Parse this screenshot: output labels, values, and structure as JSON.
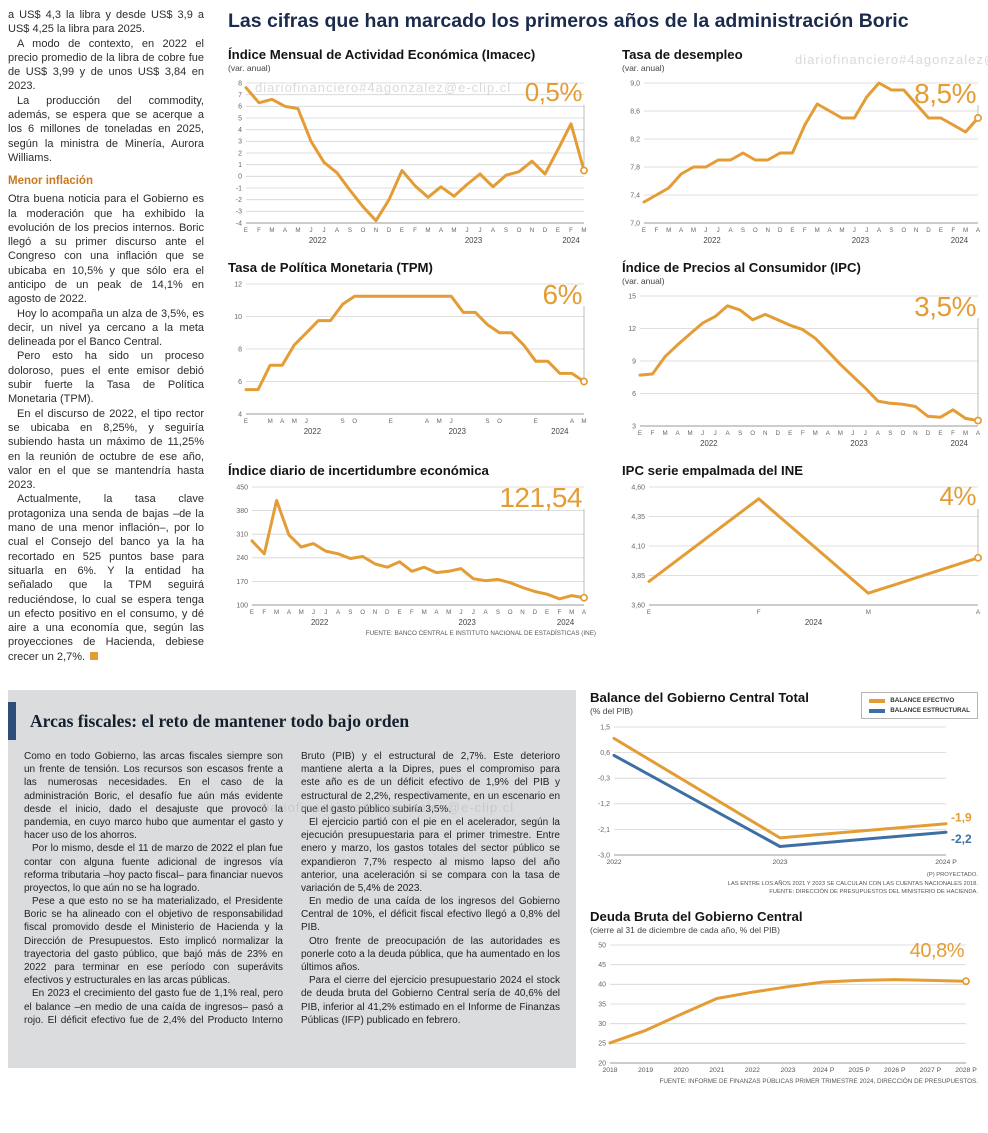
{
  "watermark": "diariofinanciero#4agonzalez@e-clip.cl",
  "headline": "Las cifras que han marcado los primeros años de la administración Boric",
  "colors": {
    "accent_orange": "#E49C35",
    "accent_blue": "#3D6FA5",
    "headline_navy": "#1B2B4D"
  },
  "article": {
    "lead_paragraphs": [
      "a US$ 4,3 la libra y desde US$ 3,9 a US$ 4,25 la libra para 2025.",
      "A modo de contexto, en 2022 el precio promedio de la libra de cobre fue de US$ 3,99 y de unos US$ 3,84 en 2023.",
      "La producción del commodity, además, se espera que se acerque a los 6 millones de toneladas en 2025, según la ministra de Minería, Aurora Williams."
    ],
    "subhead": "Menor inflación",
    "body_paragraphs": [
      "Otra buena noticia para el Gobierno es la moderación que ha exhibido la evolución de los precios internos. Boric llegó a su primer discurso ante el Congreso con una inflación que se ubicaba en 10,5% y que sólo era el anticipo de un peak de 14,1% en agosto de 2022.",
      "Hoy lo acompaña un alza de 3,5%, es decir, un nivel ya cercano a la meta delineada por el Banco Central.",
      "Pero esto ha sido un proceso doloroso, pues el ente emisor debió subir fuerte la Tasa de Política Monetaria (TPM).",
      "En el discurso de 2022, el tipo rector se ubicaba en 8,25%, y seguiría subiendo hasta un máximo de 11,25% en la reunión de octubre de ese año, valor en el que se mantendría hasta 2023.",
      "Actualmente, la tasa clave protagoniza una senda de bajas –de la mano de una menor inflación–, por lo cual el Consejo del banco ya la ha recortado en 525 puntos base para situarla en 6%. Y la entidad ha señalado que la TPM seguirá reduciéndose, lo cual se espera tenga un efecto positivo en el consumo, y dé aire a una economía que, según las proyecciones de Hacienda, debiese crecer un 2,7%."
    ]
  },
  "box": {
    "title": "Arcas fiscales: el reto de mantener todo bajo orden",
    "paragraphs": [
      "Como en todo Gobierno, las arcas fiscales siempre son un frente de tensión. Los recursos son escasos frente a las numerosas necesidades. En el caso de la administración Boric, el desafío fue aún más evidente desde el inicio, dado el desajuste que provocó la pandemia, en cuyo marco hubo que aumentar el gasto y hacer uso de los ahorros.",
      "Por lo mismo, desde el 11 de marzo de 2022 el plan fue contar con alguna fuente adicional de ingresos vía reforma tributaria –hoy pacto fiscal– para financiar nuevos proyectos, lo que aún no se ha logrado.",
      "Pese a que esto no se ha materializado, el Presidente Boric se ha alineado con el objetivo de responsabilidad fiscal promovido desde el Ministerio de Hacienda y la Dirección de Presupuestos. Esto implicó normalizar la trayectoria del gasto público, que bajó más de 23% en 2022 para terminar en ese período con superávits efectivos y estructurales en las arcas públicas.",
      "En 2023 el crecimiento del gasto fue de 1,1% real, pero el balance –en medio de una caída de ingresos– pasó a rojo. El déficit efectivo fue de 2,4% del Producto Interno Bruto (PIB) y el estructural de 2,7%. Este deterioro mantiene alerta a la Dipres, pues el compromiso para este año es de un déficit efectivo de 1,9% del PIB y estructural de 2,2%, respectivamente, en un escenario en que el gasto público subiría 3,5%.",
      "El ejercicio partió con el pie en el acelerador, según la ejecución presupuestaria para el primer trimestre. Entre enero y marzo, los gastos totales del sector público se expandieron 7,7% respecto al mismo lapso del año anterior, una aceleración si se compara con la tasa de variación de 5,4% de 2023.",
      "En medio de una caída de los ingresos del Gobierno Central de 10%, el déficit fiscal efectivo llegó a 0,8% del PIB.",
      "Otro frente de preocupación de las autoridades es ponerle coto a la deuda pública, que ha aumentado en los últimos años.",
      "Para el cierre del ejercicio presupuestario 2024 el stock de deuda bruta del Gobierno Central sería de 40,6% del PIB, inferior al 41,2% estimado en el Informe de Finanzas Públicas (IFP) publicado en febrero."
    ]
  },
  "chart_data": [
    {
      "type": "line",
      "title": "Índice Mensual de Actividad Económica (Imacec)",
      "subtitle": "(var. anual)",
      "source": "",
      "ylim": [
        -4,
        8
      ],
      "ml": 18,
      "yticks": [
        8,
        7,
        6,
        5,
        4,
        3,
        2,
        1,
        0,
        -1,
        -2,
        -3,
        -4
      ],
      "ytick_labels": [
        "8",
        "7",
        "6",
        "5",
        "4",
        "3",
        "2",
        "1",
        "0",
        "-1",
        "-2",
        "-3",
        "-4"
      ],
      "xticks": [
        "E",
        "F",
        "M",
        "A",
        "M",
        "J",
        "J",
        "A",
        "S",
        "O",
        "N",
        "D",
        "E",
        "F",
        "M",
        "A",
        "M",
        "J",
        "J",
        "A",
        "S",
        "O",
        "N",
        "D",
        "E",
        "F",
        "M"
      ],
      "years": [
        {
          "label": "2022",
          "start": 0,
          "end": 11
        },
        {
          "label": "2023",
          "start": 12,
          "end": 23
        },
        {
          "label": "2024",
          "start": 24,
          "end": 26
        }
      ],
      "annotation": {
        "text": "0,5%",
        "size": 26
      },
      "series": [
        {
          "color": "#E49C35",
          "width": 3,
          "drop_line": true,
          "end_marker": true,
          "values": [
            7.6,
            6.3,
            6.6,
            6.0,
            5.8,
            3.0,
            1.2,
            0.3,
            -1.2,
            -2.6,
            -3.8,
            -2.0,
            0.5,
            -0.8,
            -1.8,
            -0.9,
            -1.7,
            -0.7,
            0.2,
            -0.9,
            0.1,
            0.4,
            1.3,
            0.2,
            2.3,
            4.5,
            0.5
          ]
        }
      ]
    },
    {
      "type": "line",
      "title": "Tasa de desempleo",
      "subtitle": "(var. anual)",
      "source": "",
      "ylim": [
        7.0,
        9.0
      ],
      "ml": 22,
      "yticks": [
        9.0,
        8.6,
        8.2,
        7.8,
        7.4,
        7.0
      ],
      "ytick_labels": [
        "9,0",
        "8,6",
        "8,2",
        "7,8",
        "7,4",
        "7,0"
      ],
      "xticks": [
        "E",
        "F",
        "M",
        "A",
        "M",
        "J",
        "J",
        "A",
        "S",
        "O",
        "N",
        "D",
        "E",
        "F",
        "M",
        "A",
        "M",
        "J",
        "J",
        "A",
        "S",
        "O",
        "N",
        "D",
        "E",
        "F",
        "M",
        "A"
      ],
      "years": [
        {
          "label": "2022",
          "start": 0,
          "end": 11
        },
        {
          "label": "2023",
          "start": 12,
          "end": 23
        },
        {
          "label": "2024",
          "start": 24,
          "end": 27
        }
      ],
      "annotation": {
        "text": "8,5%",
        "size": 28
      },
      "series": [
        {
          "color": "#E49C35",
          "width": 3,
          "drop_line": true,
          "end_marker": true,
          "values": [
            7.3,
            7.4,
            7.5,
            7.7,
            7.8,
            7.8,
            7.9,
            7.9,
            8.0,
            7.9,
            7.9,
            8.0,
            8.0,
            8.4,
            8.7,
            8.6,
            8.5,
            8.5,
            8.8,
            9.0,
            8.9,
            8.9,
            8.7,
            8.5,
            8.5,
            8.4,
            8.3,
            8.5
          ]
        }
      ]
    },
    {
      "type": "line",
      "title": "Tasa de Política Monetaria (TPM)",
      "subtitle": "",
      "source": "",
      "ylim": [
        4,
        12
      ],
      "ml": 18,
      "yticks": [
        12,
        10,
        8,
        6,
        4
      ],
      "ytick_labels": [
        "12",
        "10",
        "8",
        "6",
        "4"
      ],
      "xticks": [
        "E",
        "",
        "M",
        "A",
        "M",
        "J",
        "",
        "",
        "S",
        "O",
        "",
        "",
        "E",
        "",
        "",
        "A",
        "M",
        "J",
        "",
        "",
        "S",
        "O",
        "",
        "",
        "E",
        "",
        "",
        "A",
        "M"
      ],
      "years": [
        {
          "label": "2022",
          "start": 0,
          "end": 11
        },
        {
          "label": "2023",
          "start": 12,
          "end": 23
        },
        {
          "label": "2024",
          "start": 24,
          "end": 28
        }
      ],
      "annotation": {
        "text": "6%",
        "size": 28
      },
      "series": [
        {
          "color": "#E49C35",
          "width": 3,
          "drop_line": true,
          "end_marker": true,
          "values": [
            5.5,
            5.5,
            7.0,
            7.0,
            8.25,
            9.0,
            9.75,
            9.75,
            10.75,
            11.25,
            11.25,
            11.25,
            11.25,
            11.25,
            11.25,
            11.25,
            11.25,
            11.25,
            10.25,
            10.25,
            9.5,
            9.0,
            9.0,
            8.25,
            7.25,
            7.25,
            6.5,
            6.5,
            6.0
          ]
        }
      ]
    },
    {
      "type": "line",
      "title": "Índice de Precios al Consumidor (IPC)",
      "subtitle": "(var. anual)",
      "source": "",
      "ylim": [
        3,
        15
      ],
      "ml": 18,
      "yticks": [
        15,
        12,
        9,
        6,
        3
      ],
      "ytick_labels": [
        "15",
        "12",
        "9",
        "6",
        "3"
      ],
      "xticks": [
        "E",
        "F",
        "M",
        "A",
        "M",
        "J",
        "J",
        "A",
        "S",
        "O",
        "N",
        "D",
        "E",
        "F",
        "M",
        "A",
        "M",
        "J",
        "J",
        "A",
        "S",
        "O",
        "N",
        "D",
        "E",
        "F",
        "M",
        "A"
      ],
      "years": [
        {
          "label": "2022",
          "start": 0,
          "end": 11
        },
        {
          "label": "2023",
          "start": 12,
          "end": 23
        },
        {
          "label": "2024",
          "start": 24,
          "end": 27
        }
      ],
      "annotation": {
        "text": "3,5%",
        "size": 28
      },
      "series": [
        {
          "color": "#E49C35",
          "width": 3,
          "drop_line": true,
          "end_marker": true,
          "values": [
            7.7,
            7.8,
            9.4,
            10.5,
            11.5,
            12.5,
            13.1,
            14.1,
            13.7,
            12.8,
            13.3,
            12.8,
            12.3,
            11.9,
            11.1,
            9.9,
            8.7,
            7.6,
            6.5,
            5.3,
            5.1,
            5.0,
            4.8,
            3.9,
            3.8,
            4.5,
            3.7,
            3.5
          ]
        }
      ]
    },
    {
      "type": "line",
      "title": "Índice diario de incertidumbre económica",
      "subtitle": "",
      "source": "FUENTE: BANCO CENTRAL E INSTITUTO NACIONAL DE ESTADÍSTICAS (INE)",
      "ylim": [
        100,
        450
      ],
      "ml": 24,
      "yticks": [
        450,
        380,
        310,
        240,
        170,
        100
      ],
      "ytick_labels": [
        "450",
        "380",
        "310",
        "240",
        "170",
        "100"
      ],
      "xticks": [
        "E",
        "F",
        "M",
        "A",
        "M",
        "J",
        "J",
        "A",
        "S",
        "O",
        "N",
        "D",
        "E",
        "F",
        "M",
        "A",
        "M",
        "J",
        "J",
        "A",
        "S",
        "O",
        "N",
        "D",
        "E",
        "F",
        "M",
        "A"
      ],
      "years": [
        {
          "label": "2022",
          "start": 0,
          "end": 11
        },
        {
          "label": "2023",
          "start": 12,
          "end": 23
        },
        {
          "label": "2024",
          "start": 24,
          "end": 27
        }
      ],
      "annotation": {
        "text": "121,54",
        "size": 28
      },
      "series": [
        {
          "color": "#E49C35",
          "width": 3,
          "drop_line": true,
          "end_marker": true,
          "values": [
            290,
            252,
            410,
            308,
            272,
            282,
            260,
            252,
            238,
            244,
            222,
            212,
            228,
            200,
            212,
            196,
            200,
            208,
            178,
            172,
            176,
            166,
            152,
            140,
            132,
            118,
            128,
            121.54
          ]
        }
      ]
    },
    {
      "type": "line",
      "title": "IPC serie empalmada del INE",
      "subtitle": "",
      "source": "",
      "ylim": [
        3.6,
        4.6
      ],
      "ml": 27,
      "yticks": [
        4.6,
        4.35,
        4.1,
        3.85,
        3.6
      ],
      "ytick_labels": [
        "4,60",
        "4,35",
        "4,10",
        "3,85",
        "3,60"
      ],
      "xticks": [
        "E",
        "F",
        "M",
        "A"
      ],
      "years": [
        {
          "label": "2024",
          "start": 0,
          "end": 3
        }
      ],
      "annotation": {
        "text": "4%",
        "size": 26
      },
      "series": [
        {
          "color": "#E49C35",
          "width": 3,
          "drop_line": true,
          "end_marker": true,
          "values": [
            3.8,
            4.5,
            3.7,
            4.0
          ]
        }
      ]
    },
    {
      "type": "line",
      "title": "Balance del Gobierno Central Total",
      "subtitle": "(% del PIB)",
      "notes": [
        "(P) PROYECTADO.",
        "LAS ENTRE LOS AÑOS 2021 Y 2023 SE CALCULAN  CON LAS CUENTAS NACIONALES 2018.",
        "FUENTE: DIRECCIÓN DE PRESUPUESTOS DEL MINISTERIO DE HACIENDA."
      ],
      "ylim": [
        -3.0,
        1.5
      ],
      "ml": 24,
      "mr": 32,
      "yticks": [
        1.5,
        0.6,
        -0.3,
        -1.2,
        -2.1,
        -3.0
      ],
      "ytick_labels": [
        "1,5",
        "0,6",
        "-0,3",
        "-1,2",
        "-2,1",
        "-3,0"
      ],
      "xticks": [
        "2022",
        "2023",
        "2024 P"
      ],
      "xtick_class": "xt2",
      "series": [
        {
          "name": "BALANCE EFECTIVO",
          "color": "#E49C35",
          "width": 3,
          "values": [
            1.1,
            -2.4,
            -1.9
          ],
          "end_label": {
            "text": "-1,9",
            "dy": -2
          }
        },
        {
          "name": "BALANCE ESTRUCTURAL",
          "color": "#3D6FA5",
          "width": 3,
          "values": [
            0.5,
            -2.7,
            -2.2
          ],
          "end_label": {
            "text": "-2,2",
            "dy": 11
          }
        }
      ]
    },
    {
      "type": "line",
      "title": "Deuda Bruta del Gobierno Central",
      "subtitle": "(cierre al 31 de diciembre de cada año, % del PIB)",
      "source": "FUENTE: INFORME DE FINANZAS PÚBLICAS PRIMER TRIMESTRE 2024, DIRECCIÓN DE PRESUPUESTOS.",
      "ylim": [
        20,
        50
      ],
      "ml": 20,
      "yticks": [
        50,
        45,
        40,
        35,
        30,
        25,
        20
      ],
      "ytick_labels": [
        "50",
        "45",
        "40",
        "35",
        "30",
        "25",
        "20"
      ],
      "xticks": [
        "2018",
        "2019",
        "2020",
        "2021",
        "2022",
        "2023",
        "2024 P",
        "2025 P",
        "2026 P",
        "2027 P",
        "2028 P"
      ],
      "xtick_class": "xt2",
      "annotation": {
        "text": "40,8%",
        "size": 20
      },
      "series": [
        {
          "color": "#E49C35",
          "width": 3,
          "end_marker": true,
          "values": [
            25.1,
            28.3,
            32.4,
            36.4,
            38.0,
            39.4,
            40.6,
            41.0,
            41.2,
            41.0,
            40.8
          ]
        }
      ]
    }
  ]
}
